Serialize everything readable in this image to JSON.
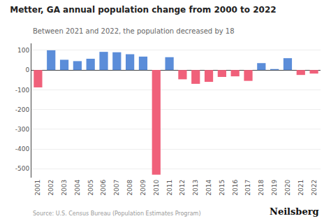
{
  "chart_data": {
    "type": "bar",
    "title": "Metter, GA annual population change from 2000 to 2022",
    "subtitle": "Between 2021 and 2022, the population decreased by 18",
    "annotations": [
      "Source: U.S. Census Bureau (Population Estimates Program)",
      "Neilsberg"
    ],
    "categories": [
      "2001",
      "2002",
      "2003",
      "2004",
      "2005",
      "2006",
      "2007",
      "2008",
      "2009",
      "2010",
      "2011",
      "2012",
      "2013",
      "2014",
      "2015",
      "2016",
      "2017",
      "2018",
      "2019",
      "2020",
      "2021",
      "2022"
    ],
    "values": [
      -88,
      100,
      52,
      45,
      57,
      92,
      90,
      80,
      68,
      -530,
      65,
      -47,
      -70,
      -60,
      -35,
      -32,
      -55,
      35,
      5,
      60,
      -25,
      -18
    ],
    "colors": [
      "#f0607a",
      "#5b8dd9",
      "#5b8dd9",
      "#5b8dd9",
      "#5b8dd9",
      "#5b8dd9",
      "#5b8dd9",
      "#5b8dd9",
      "#5b8dd9",
      "#f0607a",
      "#5b8dd9",
      "#f0607a",
      "#f0607a",
      "#f0607a",
      "#f0607a",
      "#f0607a",
      "#f0607a",
      "#5b8dd9",
      "#5b8dd9",
      "#5b8dd9",
      "#f0607a",
      "#f0607a"
    ],
    "ylim": [
      -545,
      135
    ],
    "yticks": [
      100,
      0,
      -100,
      -200,
      -300,
      -400,
      -500
    ],
    "grid": true
  }
}
